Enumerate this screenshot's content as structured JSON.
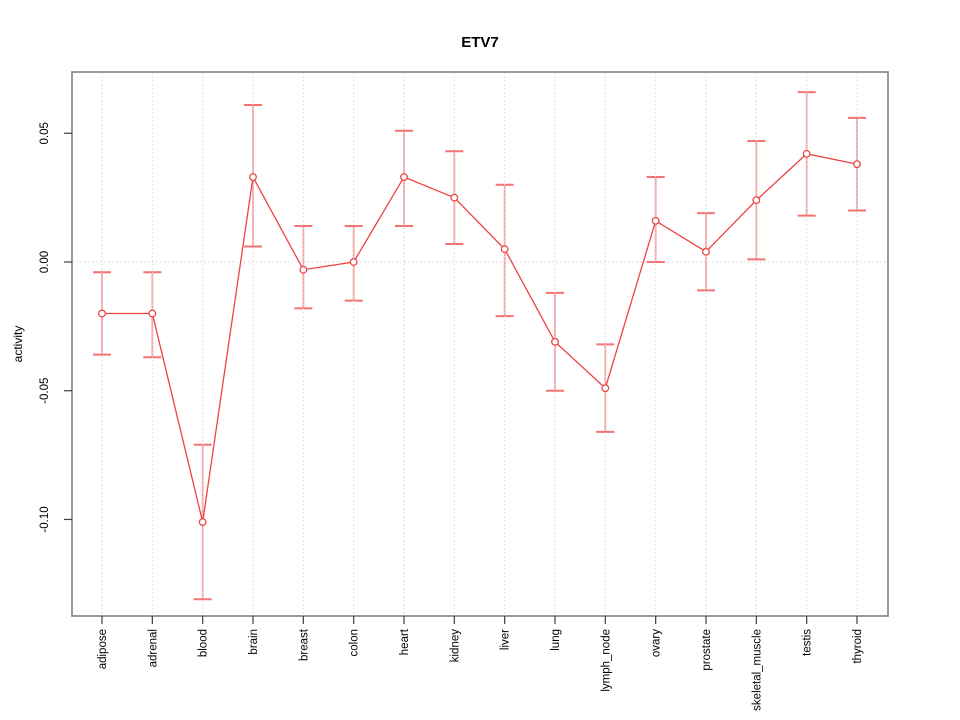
{
  "chart_data": {
    "type": "line",
    "title": "ETV7",
    "xlabel": "",
    "ylabel": "activity",
    "legend": "none",
    "categories": [
      "adipose",
      "adrenal",
      "blood",
      "brain",
      "breast",
      "colon",
      "heart",
      "kidney",
      "liver",
      "lung",
      "lymph_node",
      "ovary",
      "prostate",
      "skeletal_muscle",
      "testis",
      "thyroid"
    ],
    "series": [
      {
        "name": "ETV7 activity",
        "marker": "open-circle",
        "values": [
          -0.02,
          -0.02,
          -0.101,
          0.033,
          -0.003,
          0.0,
          0.033,
          0.025,
          0.005,
          -0.031,
          -0.049,
          0.016,
          0.004,
          0.024,
          0.042,
          0.038
        ],
        "ci_low": [
          -0.036,
          -0.037,
          -0.131,
          0.006,
          -0.018,
          -0.015,
          0.014,
          0.007,
          -0.021,
          -0.05,
          -0.066,
          0.0,
          -0.011,
          0.001,
          0.018,
          0.02
        ],
        "ci_high": [
          -0.004,
          -0.004,
          -0.071,
          0.061,
          0.014,
          0.014,
          0.051,
          0.043,
          0.03,
          -0.012,
          -0.032,
          0.033,
          0.019,
          0.047,
          0.066,
          0.056
        ]
      }
    ],
    "yticks": [
      0.05,
      0.0,
      -0.05,
      -0.1
    ],
    "ytick_labels": [
      "0.05",
      "0.00",
      "-0.05",
      "-0.10"
    ],
    "ylim": [
      -0.1375,
      0.0738
    ],
    "reference_line_y": 0,
    "grid": {
      "vertical": "dotted line at each category",
      "horizontal": "dotted line at y=0 only"
    },
    "colors": {
      "line": "#ee4141",
      "point_stroke": "#e84848",
      "point_fill": "#ffffff",
      "error_bar": "#f8a2a2",
      "error_cap": "#f47272",
      "gridline": "#d7d7d7",
      "box_border": "#808080",
      "tick": "#404040",
      "text": "#000000",
      "background": "#ffffff"
    }
  }
}
